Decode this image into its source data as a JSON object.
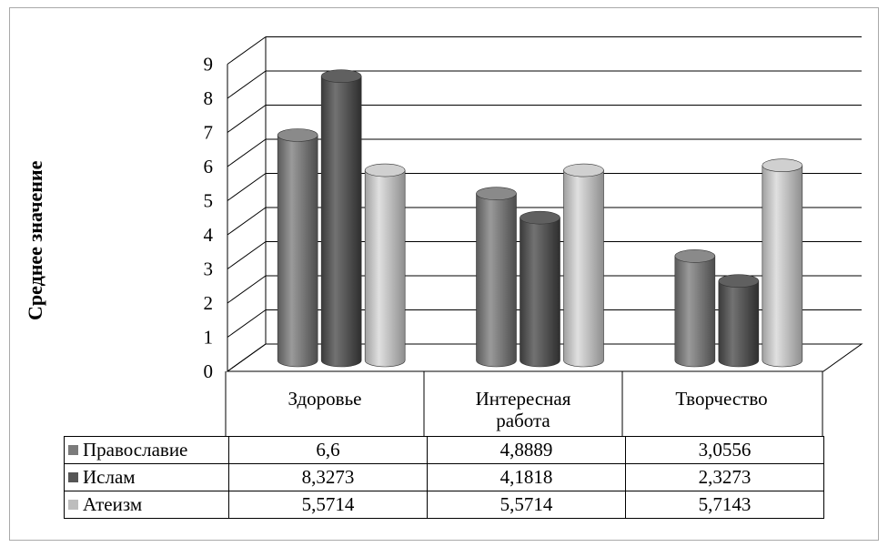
{
  "chart_data": {
    "type": "bar",
    "style": "3d-cylinder",
    "categories": [
      "Здоровье",
      "Интересная работа",
      "Творчество"
    ],
    "category_lines": [
      [
        "Здоровье"
      ],
      [
        "Интересная",
        "работа"
      ],
      [
        "Творчество"
      ]
    ],
    "series": [
      {
        "name": "Православие",
        "values": [
          6.6,
          4.8889,
          3.0556
        ],
        "labels": [
          "6,6",
          "4,8889",
          "3,0556"
        ],
        "color": "#7b7b7b"
      },
      {
        "name": "Ислам",
        "values": [
          8.3273,
          4.1818,
          2.3273
        ],
        "labels": [
          "8,3273",
          "4,1818",
          "2,3273"
        ],
        "color": "#555555"
      },
      {
        "name": "Атеизм",
        "values": [
          5.5714,
          5.5714,
          5.7143
        ],
        "labels": [
          "5,5714",
          "5,5714",
          "5,7143"
        ],
        "color": "#bdbdbd"
      }
    ],
    "ylabel": "Среднее значение",
    "ylim": [
      0,
      9
    ],
    "yticks": [
      "0",
      "1",
      "2",
      "3",
      "4",
      "5",
      "6",
      "7",
      "8",
      "9"
    ],
    "grid": true,
    "legend": "data-table-below"
  }
}
